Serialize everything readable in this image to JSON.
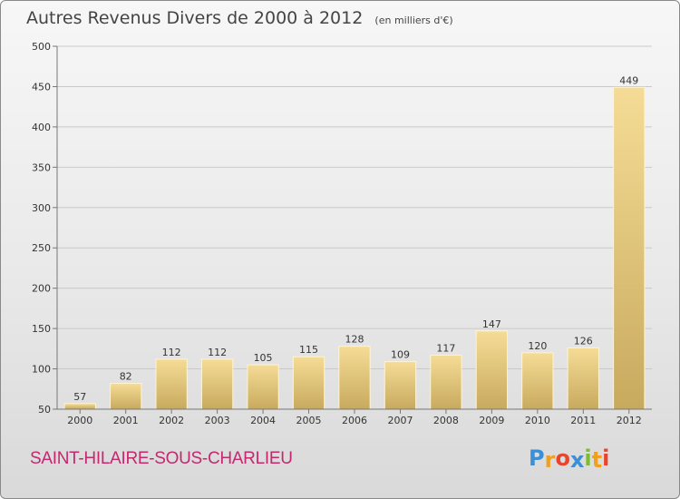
{
  "chart_data": {
    "type": "bar",
    "title": "Autres Revenus Divers de 2000 à 2012",
    "unit": "(en milliers d'€)",
    "categories": [
      "2000",
      "2001",
      "2002",
      "2003",
      "2004",
      "2005",
      "2006",
      "2007",
      "2008",
      "2009",
      "2010",
      "2011",
      "2012"
    ],
    "values": [
      57,
      82,
      112,
      112,
      105,
      115,
      128,
      109,
      117,
      147,
      120,
      126,
      449
    ],
    "ylim": [
      50,
      500
    ],
    "yticks": [
      50,
      100,
      150,
      200,
      250,
      300,
      350,
      400,
      450,
      500
    ],
    "grid": true,
    "bar_color": "#e8c97a"
  },
  "commune": "SAINT-HILAIRE-SOUS-CHARLIEU",
  "logo": {
    "letters": [
      "P",
      "r",
      "o",
      "x",
      "i",
      "t",
      "i"
    ],
    "colors": [
      "#3a8fd6",
      "#f0a020",
      "#e8452c",
      "#3a8fd6",
      "#7dbb32",
      "#f0a020",
      "#e8452c"
    ]
  }
}
